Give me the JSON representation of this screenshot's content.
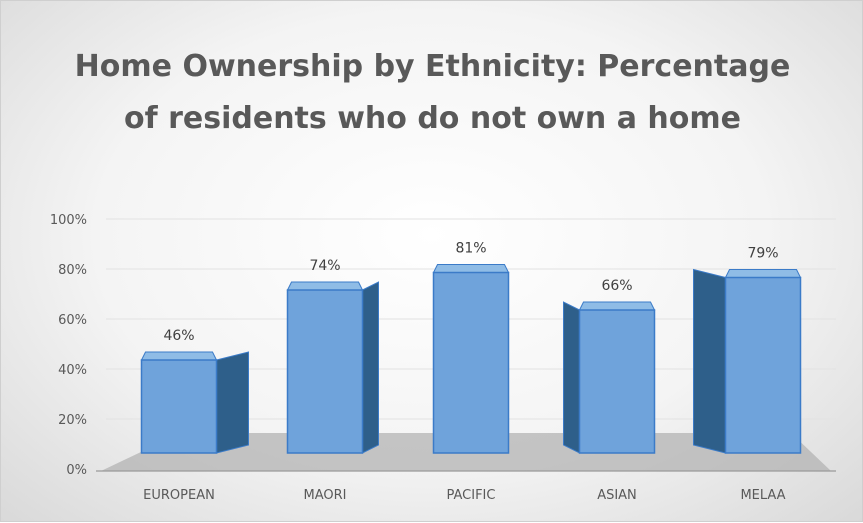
{
  "chart_data": {
    "type": "bar",
    "title": "Home Ownership by Ethnicity: Percentage of residents who do not own a home",
    "categories": [
      "EUROPEAN",
      "MAORI",
      "PACIFIC",
      "ASIAN",
      "MELAA"
    ],
    "values": [
      46,
      74,
      81,
      66,
      79
    ],
    "data_labels": [
      "46%",
      "74%",
      "81%",
      "66%",
      "79%"
    ],
    "y_ticks": [
      "0%",
      "20%",
      "40%",
      "60%",
      "80%",
      "100%"
    ],
    "ylim": [
      0,
      100
    ],
    "xlabel": "",
    "ylabel": "",
    "grid": true,
    "legend": false,
    "style": "3d-column",
    "bar_color": "#6FA3DB",
    "bar_side_color": "#2E5F8A",
    "bar_edge_color": "#3B7BC8"
  }
}
